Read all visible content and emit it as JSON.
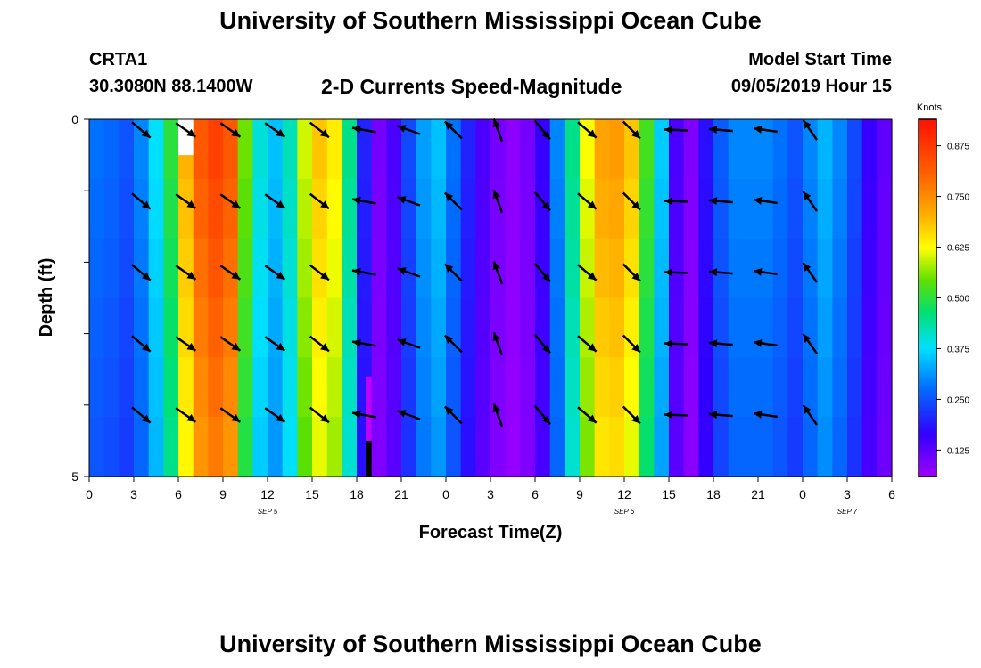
{
  "page": {
    "title_top": "University of Southern Mississippi Ocean Cube",
    "title_bottom": "University of Southern Mississippi Ocean Cube",
    "station": "CRTA1",
    "coordinates": "30.3080N 88.1400W",
    "subtitle": "2-D Currents Speed-Magnitude",
    "model_start_label": "Model Start Time",
    "model_start_value": "09/05/2019 Hour 15"
  },
  "chart_data": {
    "type": "heatmap",
    "title": "2-D Currents Speed-Magnitude",
    "xlabel": "Forecast Time(Z)",
    "ylabel": "Depth (ft)",
    "ylim": [
      0,
      5
    ],
    "y_tick_labels": [
      "0",
      "5"
    ],
    "x_tick_labels": [
      "0",
      "3",
      "6",
      "9",
      "12",
      "15",
      "18",
      "21",
      "0",
      "3",
      "6",
      "9",
      "12",
      "15",
      "18",
      "21",
      "0",
      "3",
      "6"
    ],
    "date_labels": [
      {
        "text": "SEP 5",
        "hour_index": 12
      },
      {
        "text": "SEP 6",
        "hour_index": 36
      },
      {
        "text": "SEP 7",
        "hour_index": 51
      }
    ],
    "colorbar": {
      "label": "Knots",
      "range": [
        0.06,
        0.94
      ],
      "tick_labels": [
        "0.875",
        "0.750",
        "0.625",
        "0.500",
        "0.375",
        "0.250",
        "0.125"
      ],
      "tick_values": [
        0.875,
        0.75,
        0.625,
        0.5,
        0.375,
        0.25,
        0.125
      ]
    },
    "speed_knots_by_hour": [
      0.28,
      0.27,
      0.25,
      0.3,
      0.38,
      0.5,
      0.7,
      0.82,
      0.86,
      0.82,
      0.55,
      0.4,
      0.35,
      0.42,
      0.6,
      0.68,
      0.64,
      0.45,
      0.2,
      0.1,
      0.14,
      0.24,
      0.32,
      0.35,
      0.28,
      0.2,
      0.14,
      0.1,
      0.08,
      0.1,
      0.16,
      0.3,
      0.45,
      0.62,
      0.72,
      0.73,
      0.68,
      0.52,
      0.36,
      0.14,
      0.09,
      0.18,
      0.26,
      0.3,
      0.3,
      0.3,
      0.28,
      0.25,
      0.3,
      0.34,
      0.3,
      0.24,
      0.16,
      0.12
    ],
    "depth_factors": [
      1.0,
      0.98,
      0.96,
      0.94,
      0.92,
      0.9
    ],
    "vector_direction_deg_by_hour": [
      null,
      null,
      null,
      -40,
      null,
      null,
      -35,
      null,
      null,
      -35,
      null,
      null,
      -35,
      null,
      null,
      -38,
      null,
      null,
      170,
      null,
      null,
      160,
      null,
      null,
      135,
      null,
      null,
      110,
      null,
      null,
      -50,
      null,
      null,
      -40,
      null,
      null,
      -45,
      null,
      null,
      178,
      null,
      null,
      175,
      null,
      null,
      172,
      null,
      null,
      125,
      null,
      null,
      null,
      null,
      null
    ],
    "missing_data": [
      {
        "hour_start": 6,
        "hour_end": 7,
        "depth_start": 0,
        "depth_end": 0.5,
        "color": "#ffffff"
      },
      {
        "hour_start": 18.6,
        "hour_end": 19.0,
        "depth_start": 4.5,
        "depth_end": 5,
        "color": "#000000"
      },
      {
        "hour_start": 18.6,
        "hour_end": 19.0,
        "depth_start": 3.6,
        "depth_end": 4.5,
        "color": "#c000ff"
      }
    ]
  }
}
